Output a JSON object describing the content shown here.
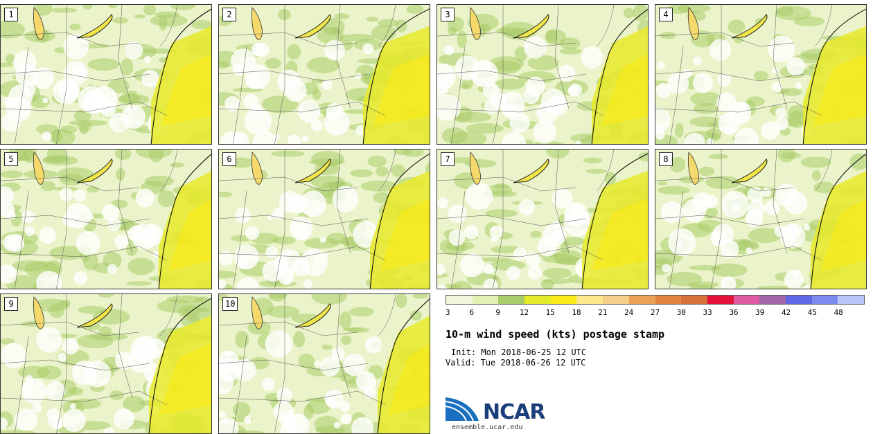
{
  "panels": [
    "1",
    "2",
    "3",
    "4",
    "5",
    "6",
    "7",
    "8",
    "9",
    "10"
  ],
  "colorbar": {
    "ticks": [
      "3",
      "6",
      "9",
      "12",
      "15",
      "18",
      "21",
      "24",
      "27",
      "30",
      "33",
      "36",
      "39",
      "42",
      "45",
      "48"
    ],
    "colors": [
      "#f1f7da",
      "#e2f0b4",
      "#a9cc6a",
      "#e4ec2a",
      "#f9ea1a",
      "#fbe88a",
      "#f5cf8a",
      "#eaa356",
      "#e2843e",
      "#d7703a",
      "#e4123c",
      "#e05aa2",
      "#a368a9",
      "#6269e6",
      "#7d8bf1",
      "#b8c7f7"
    ]
  },
  "title": "10-m wind speed (kts) postage stamp",
  "init": "Init: Mon 2018-06-25 12 UTC",
  "valid": "Valid: Tue 2018-06-26 12 UTC",
  "logo_text": "NCAR",
  "site": "ensemble.ucar.edu"
}
